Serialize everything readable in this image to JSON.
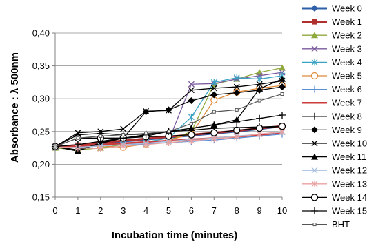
{
  "chart_data": {
    "type": "line",
    "xlabel": "Incubation time (minutes)",
    "ylabel": "Absorbance : λ 500nm",
    "xlim": [
      0,
      10
    ],
    "ylim": [
      0.15,
      0.4
    ],
    "x": [
      0,
      1,
      2,
      3,
      4,
      5,
      6,
      7,
      8,
      9,
      10
    ],
    "x_tick_labels": [
      "0",
      "1",
      "2",
      "3",
      "4",
      "5",
      "6",
      "7",
      "8",
      "9",
      "10"
    ],
    "y_tick_labels": [
      "0,15",
      "0,20",
      "0,25",
      "0,30",
      "0,35",
      "0,40"
    ],
    "y_ticks": [
      0.15,
      0.2,
      0.25,
      0.3,
      0.35,
      0.4
    ],
    "grid": "horizontal",
    "legend_position": "right",
    "series": [
      {
        "name": "Week 0",
        "color": "#2e5fa8",
        "marker": "diamond",
        "width": 3,
        "values": [
          0.227,
          0.229,
          0.232,
          0.235,
          0.238,
          0.241,
          0.244,
          0.247,
          0.25,
          0.254,
          0.258
        ]
      },
      {
        "name": "Week 1",
        "color": "#b03030",
        "marker": "square",
        "width": 3,
        "values": [
          0.227,
          0.229,
          0.233,
          0.236,
          0.239,
          0.242,
          0.245,
          0.248,
          0.251,
          0.255,
          0.258
        ]
      },
      {
        "name": "Week 2",
        "color": "#8faa3c",
        "marker": "triangle",
        "width": 1.3,
        "values": [
          0.225,
          0.222,
          0.225,
          0.23,
          0.232,
          0.236,
          0.25,
          0.322,
          0.33,
          0.34,
          0.347
        ]
      },
      {
        "name": "Week 3",
        "color": "#7a5a9e",
        "marker": "x",
        "width": 1.3,
        "values": [
          0.227,
          0.226,
          0.228,
          0.231,
          0.232,
          0.236,
          0.322,
          0.323,
          0.33,
          0.335,
          0.34
        ]
      },
      {
        "name": "Week 4",
        "color": "#3aa3c4",
        "marker": "star",
        "width": 1.3,
        "values": [
          0.226,
          0.227,
          0.229,
          0.232,
          0.234,
          0.24,
          0.272,
          0.325,
          0.332,
          0.33,
          0.335
        ]
      },
      {
        "name": "Week 5",
        "color": "#e08a3a",
        "marker": "circle",
        "width": 1.3,
        "values": [
          0.227,
          0.226,
          0.228,
          0.226,
          0.231,
          0.237,
          0.246,
          0.298,
          0.31,
          0.316,
          0.32
        ]
      },
      {
        "name": "Week 6",
        "color": "#5b8fd4",
        "marker": "plus",
        "width": 1.3,
        "values": [
          0.226,
          0.226,
          0.228,
          0.23,
          0.231,
          0.233,
          0.235,
          0.237,
          0.24,
          0.243,
          0.246
        ]
      },
      {
        "name": "Week 7",
        "color": "#cc3b3b",
        "marker": "none",
        "width": 2.5,
        "values": [
          0.227,
          0.228,
          0.23,
          0.232,
          0.234,
          0.236,
          0.238,
          0.24,
          0.242,
          0.245,
          0.248
        ]
      },
      {
        "name": "Week 8",
        "color": "#000000",
        "marker": "plus",
        "width": 1.3,
        "values": [
          0.227,
          0.245,
          0.247,
          0.245,
          0.246,
          0.25,
          0.252,
          0.255,
          0.256,
          0.257,
          0.258
        ]
      },
      {
        "name": "Week 9",
        "color": "#000000",
        "marker": "diamond",
        "width": 1.3,
        "values": [
          0.227,
          0.222,
          0.232,
          0.24,
          0.28,
          0.283,
          0.297,
          0.306,
          0.309,
          0.313,
          0.318
        ]
      },
      {
        "name": "Week 10",
        "color": "#000000",
        "marker": "x",
        "width": 1.3,
        "values": [
          0.227,
          0.248,
          0.25,
          0.254,
          0.281,
          0.282,
          0.313,
          0.316,
          0.318,
          0.322,
          0.327
        ]
      },
      {
        "name": "Week 11",
        "color": "#000000",
        "marker": "triangle",
        "width": 1.3,
        "values": [
          0.227,
          0.22,
          0.233,
          0.24,
          0.243,
          0.25,
          0.255,
          0.26,
          0.268,
          0.315,
          0.33
        ]
      },
      {
        "name": "Week 12",
        "color": "#a8c0e0",
        "marker": "x",
        "width": 1.3,
        "values": [
          0.226,
          0.226,
          0.228,
          0.23,
          0.232,
          0.235,
          0.238,
          0.24,
          0.243,
          0.246,
          0.249
        ]
      },
      {
        "name": "Week 13",
        "color": "#e8a0a0",
        "marker": "star",
        "width": 1.3,
        "values": [
          0.227,
          0.225,
          0.224,
          0.228,
          0.23,
          0.233,
          0.236,
          0.239,
          0.242,
          0.246,
          0.25
        ]
      },
      {
        "name": "Week 14",
        "color": "#000000",
        "marker": "circle",
        "width": 1.3,
        "values": [
          0.227,
          0.24,
          0.24,
          0.24,
          0.242,
          0.243,
          0.245,
          0.248,
          0.252,
          0.255,
          0.258
        ]
      },
      {
        "name": "Week 15",
        "color": "#000000",
        "marker": "plus",
        "width": 1.3,
        "values": [
          0.227,
          0.23,
          0.235,
          0.24,
          0.245,
          0.25,
          0.255,
          0.26,
          0.265,
          0.27,
          0.275
        ]
      },
      {
        "name": "BHT",
        "color": "#555555",
        "marker": "smallsquare",
        "width": 1.2,
        "values": [
          0.227,
          0.24,
          0.243,
          0.245,
          0.247,
          0.25,
          0.262,
          0.28,
          0.283,
          0.297,
          0.307
        ]
      }
    ]
  }
}
